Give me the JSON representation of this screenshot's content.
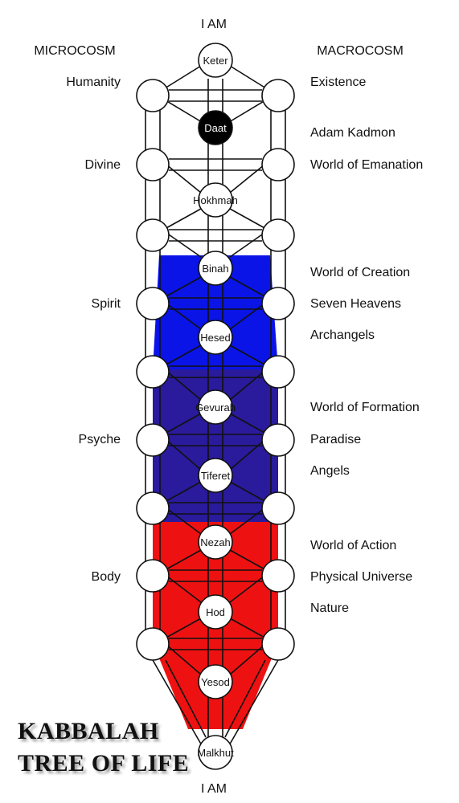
{
  "top_label": "I AM",
  "bottom_label": "I AM",
  "left_header": "MICROCOSM",
  "right_header": "MACROCOSM",
  "left_labels": [
    "Humanity",
    "Divine",
    "Spirit",
    "Psyche",
    "Body"
  ],
  "right_labels": [
    "Existence",
    "Adam Kadmon",
    "World of Emanation",
    "World of Creation",
    "Seven Heavens",
    "Archangels",
    "World of Formation",
    "Paradise",
    "Angels",
    "World of Action",
    "Physical Universe",
    "Nature"
  ],
  "center_nodes": [
    "Keter",
    "Daat",
    "Hokhmah",
    "Binah",
    "Hesed",
    "Gevurah",
    "Tiferet",
    "Nezah",
    "Hod",
    "Yesod",
    "Malkhut"
  ],
  "title_line1": "KABBALAH",
  "title_line2": "TREE OF LIFE",
  "colors": {
    "blue": "#0a14e6",
    "indigo": "#2a1a9c",
    "red": "#ee1111",
    "outline": "#111111",
    "daat": "#000000"
  }
}
